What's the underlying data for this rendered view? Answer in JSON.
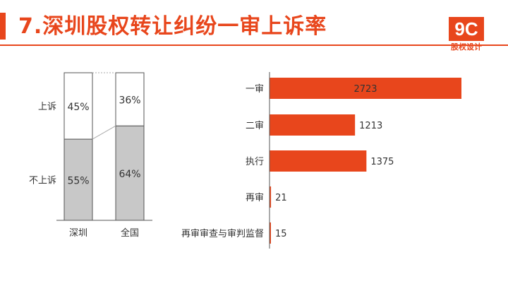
{
  "header": {
    "title": "7.深圳股权转让纠纷一审上诉率",
    "logo_text": "9C",
    "logo_subtitle": "股权设计"
  },
  "colors": {
    "accent": "#e8461c",
    "title_text": "#e8461c",
    "bar_gray": "#c8c8c8",
    "bar_white": "#ffffff",
    "text": "#333333"
  },
  "chart_data": [
    {
      "type": "bar",
      "stacked": true,
      "percent": true,
      "categories": [
        "深圳",
        "全国"
      ],
      "series": [
        {
          "name": "不上诉",
          "values": [
            55,
            64
          ],
          "labels": [
            "55%",
            "64%"
          ]
        },
        {
          "name": "上诉",
          "values": [
            45,
            36
          ],
          "labels": [
            "45%",
            "36%"
          ]
        }
      ],
      "ylim": [
        0,
        100
      ],
      "legend": "left"
    },
    {
      "type": "bar",
      "orientation": "horizontal",
      "categories": [
        "一审",
        "二审",
        "执行",
        "再审",
        "再审审查与审判监督"
      ],
      "values": [
        2723,
        1213,
        1375,
        21,
        15
      ],
      "xlim": [
        0,
        2723
      ]
    }
  ]
}
